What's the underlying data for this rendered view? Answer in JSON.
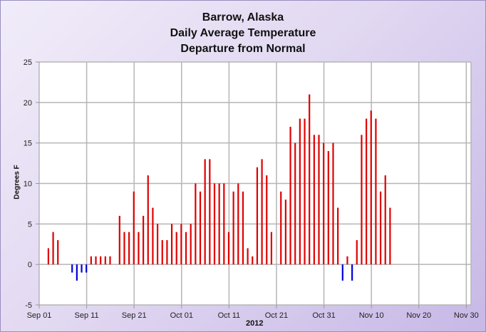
{
  "chart_data": {
    "type": "bar",
    "title": "Barrow, Alaska\nDaily Average Temperature\nDeparture from Normal",
    "title_lines": [
      "Barrow, Alaska",
      "Daily Average Temperature",
      "Departure from Normal"
    ],
    "xlabel": "2012",
    "ylabel": "Degrees F",
    "ylim": [
      -5,
      25
    ],
    "yticks": [
      -5,
      0,
      5,
      10,
      15,
      20,
      25
    ],
    "xticks": [
      "Sep 01",
      "Sep 11",
      "Sep 21",
      "Oct 01",
      "Oct 11",
      "Oct 21",
      "Oct 31",
      "Nov 10",
      "Nov 20",
      "Nov 30"
    ],
    "grid": true,
    "positive_color": "#e00000",
    "negative_color": "#0000dd",
    "series": [
      {
        "name": "Departure from Normal",
        "points": [
          {
            "day": 2,
            "date": "Sep 03",
            "value": 2
          },
          {
            "day": 3,
            "date": "Sep 04",
            "value": 4
          },
          {
            "day": 4,
            "date": "Sep 05",
            "value": 3
          },
          {
            "day": 7,
            "date": "Sep 08",
            "value": -1
          },
          {
            "day": 8,
            "date": "Sep 09",
            "value": -2
          },
          {
            "day": 9,
            "date": "Sep 10",
            "value": -1
          },
          {
            "day": 10,
            "date": "Sep 11",
            "value": -1
          },
          {
            "day": 11,
            "date": "Sep 12",
            "value": 1
          },
          {
            "day": 12,
            "date": "Sep 13",
            "value": 1
          },
          {
            "day": 13,
            "date": "Sep 14",
            "value": 1
          },
          {
            "day": 14,
            "date": "Sep 15",
            "value": 1
          },
          {
            "day": 15,
            "date": "Sep 16",
            "value": 1
          },
          {
            "day": 17,
            "date": "Sep 18",
            "value": 6
          },
          {
            "day": 18,
            "date": "Sep 19",
            "value": 4
          },
          {
            "day": 19,
            "date": "Sep 20",
            "value": 4
          },
          {
            "day": 20,
            "date": "Sep 21",
            "value": 9
          },
          {
            "day": 21,
            "date": "Sep 22",
            "value": 4
          },
          {
            "day": 22,
            "date": "Sep 23",
            "value": 6
          },
          {
            "day": 23,
            "date": "Sep 24",
            "value": 11
          },
          {
            "day": 24,
            "date": "Sep 25",
            "value": 7
          },
          {
            "day": 25,
            "date": "Sep 26",
            "value": 5
          },
          {
            "day": 26,
            "date": "Sep 27",
            "value": 3
          },
          {
            "day": 27,
            "date": "Sep 28",
            "value": 3
          },
          {
            "day": 28,
            "date": "Sep 29",
            "value": 5
          },
          {
            "day": 29,
            "date": "Sep 30",
            "value": 4
          },
          {
            "day": 30,
            "date": "Oct 01",
            "value": 5
          },
          {
            "day": 31,
            "date": "Oct 02",
            "value": 4
          },
          {
            "day": 32,
            "date": "Oct 03",
            "value": 5
          },
          {
            "day": 33,
            "date": "Oct 04",
            "value": 10
          },
          {
            "day": 34,
            "date": "Oct 05",
            "value": 9
          },
          {
            "day": 35,
            "date": "Oct 06",
            "value": 13
          },
          {
            "day": 36,
            "date": "Oct 07",
            "value": 13
          },
          {
            "day": 37,
            "date": "Oct 08",
            "value": 10
          },
          {
            "day": 38,
            "date": "Oct 09",
            "value": 10
          },
          {
            "day": 39,
            "date": "Oct 10",
            "value": 10
          },
          {
            "day": 40,
            "date": "Oct 11",
            "value": 4
          },
          {
            "day": 41,
            "date": "Oct 12",
            "value": 9
          },
          {
            "day": 42,
            "date": "Oct 13",
            "value": 10
          },
          {
            "day": 43,
            "date": "Oct 14",
            "value": 9
          },
          {
            "day": 44,
            "date": "Oct 15",
            "value": 2
          },
          {
            "day": 45,
            "date": "Oct 16",
            "value": 1
          },
          {
            "day": 46,
            "date": "Oct 17",
            "value": 12
          },
          {
            "day": 47,
            "date": "Oct 18",
            "value": 13
          },
          {
            "day": 48,
            "date": "Oct 19",
            "value": 11
          },
          {
            "day": 49,
            "date": "Oct 20",
            "value": 4
          },
          {
            "day": 51,
            "date": "Oct 22",
            "value": 9
          },
          {
            "day": 52,
            "date": "Oct 23",
            "value": 8
          },
          {
            "day": 53,
            "date": "Oct 24",
            "value": 17
          },
          {
            "day": 54,
            "date": "Oct 25",
            "value": 15
          },
          {
            "day": 55,
            "date": "Oct 26",
            "value": 18
          },
          {
            "day": 56,
            "date": "Oct 27",
            "value": 18
          },
          {
            "day": 57,
            "date": "Oct 28",
            "value": 21
          },
          {
            "day": 58,
            "date": "Oct 29",
            "value": 16
          },
          {
            "day": 59,
            "date": "Oct 30",
            "value": 16
          },
          {
            "day": 60,
            "date": "Oct 31",
            "value": 15
          },
          {
            "day": 61,
            "date": "Nov 01",
            "value": 14
          },
          {
            "day": 62,
            "date": "Nov 02",
            "value": 15
          },
          {
            "day": 63,
            "date": "Nov 03",
            "value": 7
          },
          {
            "day": 64,
            "date": "Nov 04",
            "value": -2
          },
          {
            "day": 65,
            "date": "Nov 05",
            "value": 1
          },
          {
            "day": 66,
            "date": "Nov 06",
            "value": -2
          },
          {
            "day": 67,
            "date": "Nov 07",
            "value": 3
          },
          {
            "day": 68,
            "date": "Nov 08",
            "value": 16
          },
          {
            "day": 69,
            "date": "Nov 09",
            "value": 18
          },
          {
            "day": 70,
            "date": "Nov 10",
            "value": 19
          },
          {
            "day": 71,
            "date": "Nov 11",
            "value": 18
          },
          {
            "day": 72,
            "date": "Nov 12",
            "value": 9
          },
          {
            "day": 73,
            "date": "Nov 13",
            "value": 11
          },
          {
            "day": 74,
            "date": "Nov 14",
            "value": 7
          }
        ]
      }
    ]
  }
}
